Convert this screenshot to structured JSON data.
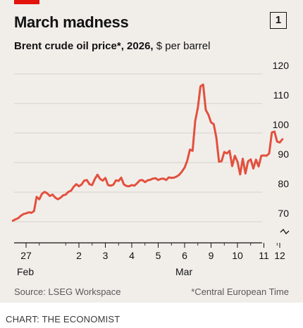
{
  "header": {
    "title": "March madness",
    "badge": "1",
    "subtitle_main": "Brent crude oil price*, 2026,",
    "subtitle_unit": "$ per barrel"
  },
  "footer": {
    "source": "Source: LSEG Workspace",
    "note": "*Central European Time",
    "credit": "CHART: THE ECONOMIST"
  },
  "colors": {
    "line": "#e3503e",
    "accent": "#e3120b",
    "panel": "#f1eeea",
    "grid": "#d5d0cb"
  },
  "chart_data": {
    "type": "line",
    "title": "March madness",
    "subtitle": "Brent crude oil price*, 2026, $ per barrel",
    "ylim": [
      66,
      120
    ],
    "y_ticks": [
      "120",
      "110",
      "100",
      "90",
      "80",
      "70"
    ],
    "axis_break": true,
    "grid": true,
    "x_ticks": [
      "27",
      "2",
      "3",
      "4",
      "5",
      "6",
      "9",
      "10",
      "11",
      "12"
    ],
    "x_tick_pos": [
      0,
      2,
      3,
      4,
      5,
      6,
      7,
      8,
      9,
      9.6
    ],
    "x_range": [
      -0.5,
      9.8
    ],
    "month_labels": [
      {
        "label": "Feb",
        "at": 0
      },
      {
        "label": "Mar",
        "at": 6
      }
    ],
    "series": [
      {
        "x": [
          -0.5,
          -0.4,
          -0.3,
          -0.2,
          -0.1,
          0.0,
          0.1,
          0.2,
          0.3,
          0.4,
          0.5,
          0.6,
          0.7,
          0.8,
          0.9,
          1.0,
          1.1,
          1.2,
          1.3,
          1.4,
          1.5,
          1.6,
          1.7,
          1.8,
          1.9,
          2.0,
          2.1,
          2.2,
          2.3,
          2.4,
          2.5,
          2.6,
          2.7,
          2.8,
          2.9,
          3.0,
          3.1,
          3.2,
          3.3,
          3.4,
          3.5,
          3.6,
          3.7,
          3.8,
          3.9,
          4.0,
          4.1,
          4.2,
          4.3,
          4.4,
          4.5,
          4.6,
          4.7,
          4.8,
          4.9,
          5.0,
          5.1,
          5.2,
          5.3,
          5.4,
          5.5,
          5.6,
          5.7,
          5.8,
          5.9,
          6.0,
          6.1,
          6.2,
          6.3,
          6.4,
          6.5,
          6.6,
          6.7,
          6.8,
          6.9,
          7.0,
          7.1,
          7.2,
          7.3,
          7.4,
          7.5,
          7.6,
          7.7,
          7.8,
          7.9,
          8.0,
          8.1,
          8.2,
          8.3,
          8.4,
          8.5,
          8.6,
          8.7,
          8.8,
          8.9,
          9.0,
          9.1,
          9.2,
          9.3,
          9.4,
          9.5,
          9.6,
          9.7
        ],
        "y": [
          70.3,
          70.8,
          71.2,
          72.0,
          72.6,
          72.8,
          73.2,
          73.0,
          73.6,
          78.4,
          77.6,
          79.4,
          80.1,
          79.6,
          78.7,
          79.2,
          78.2,
          77.6,
          78.1,
          78.9,
          79.2,
          80.1,
          80.5,
          81.8,
          82.7,
          82.0,
          82.6,
          83.9,
          84.1,
          82.7,
          82.4,
          84.4,
          85.9,
          84.5,
          83.9,
          84.8,
          82.4,
          82.2,
          82.5,
          84.0,
          83.8,
          84.9,
          82.6,
          82.1,
          82.0,
          82.4,
          82.2,
          83.0,
          84.0,
          84.1,
          83.4,
          84.0,
          84.2,
          84.6,
          84.7,
          84.1,
          84.5,
          84.6,
          84.1,
          85.0,
          84.8,
          84.9,
          85.3,
          85.9,
          87.0,
          88.3,
          90.7,
          94.4,
          94.0,
          104.0,
          108.6,
          115.8,
          116.4,
          107.8,
          106.2,
          103.6,
          103.0,
          98.5,
          90.3,
          90.5,
          93.6,
          93.1,
          94.0,
          88.8,
          92.3,
          90.3,
          86.0,
          91.3,
          86.3,
          90.4,
          91.1,
          88.0,
          91.0,
          88.7,
          92.3,
          92.4,
          92.3,
          93.1,
          100.2,
          100.5,
          97.1,
          96.8,
          97.9
        ]
      }
    ]
  }
}
